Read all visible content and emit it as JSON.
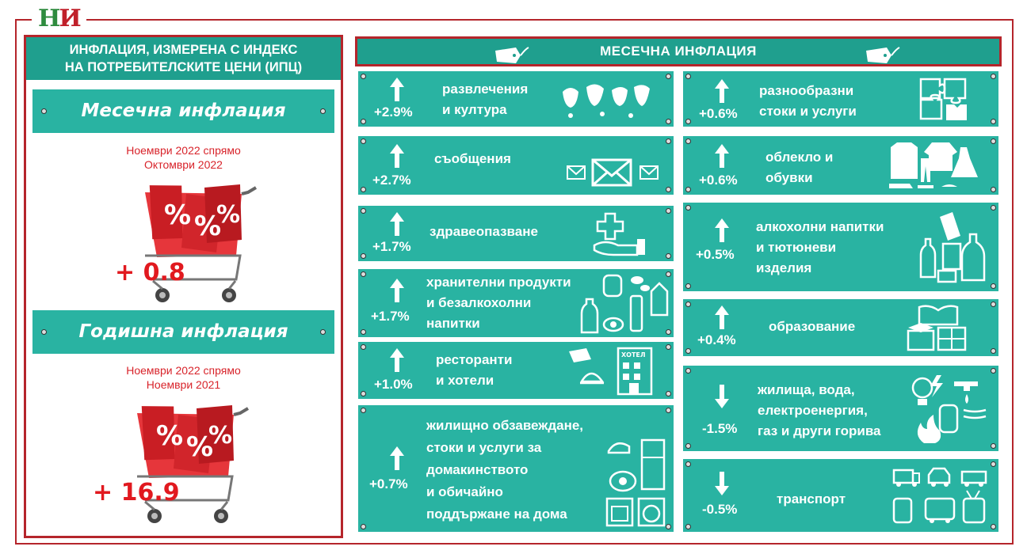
{
  "logo": {
    "letters": "НИ"
  },
  "left_panel": {
    "header_line1": "ИНФЛАЦИЯ, ИЗМЕРЕНА С ИНДЕКС",
    "header_line2": "НА ПОТРЕБИТЕЛСКИТЕ ЦЕНИ (ИПЦ)",
    "monthly": {
      "title": "Месечна инфлация",
      "period_line1": "Ноември 2022 спрямо",
      "period_line2": "Октомври 2022",
      "value": "+ 0.8"
    },
    "annual": {
      "title": "Годишна инфлация",
      "period_line1": "Ноември 2022 спрямо",
      "period_line2": "Ноември 2021",
      "value": "+ 16.9"
    },
    "cart_tag_symbol": "%"
  },
  "right_panel": {
    "title": "МЕСЕЧНА ИНФЛАЦИЯ",
    "colors": {
      "card": "#29b3a2",
      "header": "#1f9f8e",
      "frame": "#b5252b",
      "accent_red": "#e1191f"
    },
    "left_column": [
      {
        "id": "recreation",
        "value": "+2.9%",
        "direction": "up",
        "label_lines": [
          "развлечения",
          "и култура"
        ],
        "icon": "masks-icon"
      },
      {
        "id": "communication",
        "value": "+2.7%",
        "direction": "up",
        "label_lines": [
          "съобщения"
        ],
        "icon": "envelope-icon"
      },
      {
        "id": "health",
        "value": "+1.7%",
        "direction": "up",
        "label_lines": [
          "здравеопазване"
        ],
        "icon": "health-cross-hand-icon"
      },
      {
        "id": "food",
        "value": "+1.7%",
        "direction": "up",
        "label_lines": [
          "хранителни продукти",
          "и безалкохолни",
          "напитки"
        ],
        "icon": "groceries-icon"
      },
      {
        "id": "restaurants",
        "value": "+1.0%",
        "direction": "up",
        "label_lines": [
          "ресторанти",
          "и хотели"
        ],
        "icon": "hotel-icon",
        "hotel_sign": "ХОТЕЛ"
      },
      {
        "id": "household",
        "value": "+0.7%",
        "direction": "up",
        "label_lines": [
          "жилищно обзавеждане,",
          "стоки и услуги за",
          "домакинството",
          "и обичайно",
          "поддържане на дома"
        ],
        "icon": "appliances-icon"
      }
    ],
    "right_column": [
      {
        "id": "misc",
        "value": "+0.6%",
        "direction": "up",
        "label_lines": [
          "разнообразни",
          "стоки и услуги"
        ],
        "icon": "puzzle-icon"
      },
      {
        "id": "clothing",
        "value": "+0.6%",
        "direction": "up",
        "label_lines": [
          "облекло и",
          "обувки"
        ],
        "icon": "clothing-icon"
      },
      {
        "id": "alcohol",
        "value": "+0.5%",
        "direction": "up",
        "label_lines": [
          "алкохолни напитки",
          "и тютюневи",
          "изделия"
        ],
        "icon": "alcohol-tobacco-icon"
      },
      {
        "id": "education",
        "value": "+0.4%",
        "direction": "up",
        "label_lines": [
          "образование"
        ],
        "icon": "education-icon"
      },
      {
        "id": "housing",
        "value": "-1.5%",
        "direction": "down",
        "label_lines": [
          "жилища, вода,",
          "електроенергия,",
          "газ и други горива"
        ],
        "icon": "utilities-icon"
      },
      {
        "id": "transport",
        "value": "-0.5%",
        "direction": "down",
        "label_lines": [
          "транспорт"
        ],
        "icon": "transport-icon"
      }
    ]
  }
}
